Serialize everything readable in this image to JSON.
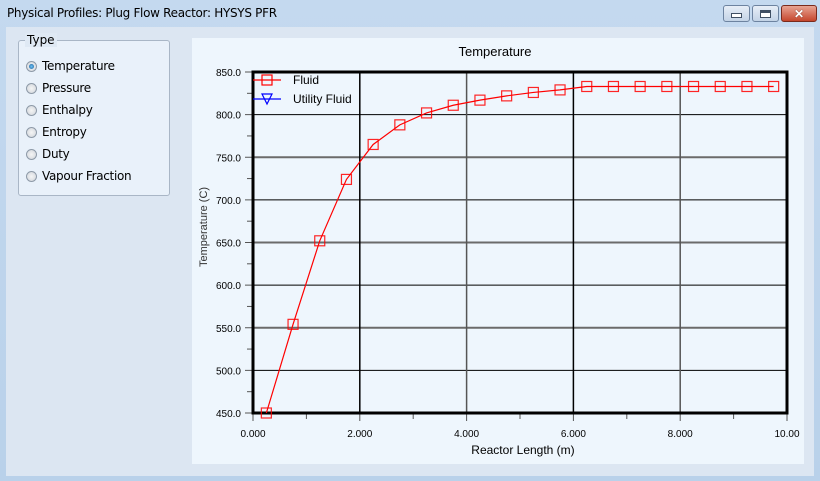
{
  "window": {
    "title": "Physical Profiles: Plug Flow Reactor: HYSYS PFR",
    "controls": {
      "minimize": "minimize-icon",
      "maximize": "maximize-icon",
      "close": "close-icon"
    }
  },
  "type_group": {
    "label": "Type",
    "options": [
      {
        "label": "Temperature",
        "checked": true
      },
      {
        "label": "Pressure",
        "checked": false
      },
      {
        "label": "Enthalpy",
        "checked": false
      },
      {
        "label": "Entropy",
        "checked": false
      },
      {
        "label": "Duty",
        "checked": false
      },
      {
        "label": "Vapour Fraction",
        "checked": false
      }
    ]
  },
  "colors": {
    "fluid": "#ff0000",
    "utility_fluid": "#0000ff",
    "chart_bg": "#eef6fd"
  },
  "chart_data": {
    "type": "line",
    "title": "Temperature",
    "xlabel": "Reactor Length (m)",
    "ylabel": "Temperature (C)",
    "xlim": [
      0,
      10
    ],
    "ylim": [
      450,
      850
    ],
    "x_ticks": [
      "0.000",
      "2.000",
      "4.000",
      "6.000",
      "8.000",
      "10.00"
    ],
    "y_ticks": [
      "450.0",
      "500.0",
      "550.0",
      "600.0",
      "650.0",
      "700.0",
      "750.0",
      "800.0",
      "850.0"
    ],
    "grid": true,
    "legend_position": "top-left inside",
    "x": [
      0.25,
      0.75,
      1.25,
      1.75,
      2.25,
      2.75,
      3.25,
      3.75,
      4.25,
      4.75,
      5.25,
      5.75,
      6.25,
      6.75,
      7.25,
      7.75,
      8.25,
      8.75,
      9.25,
      9.75
    ],
    "series": [
      {
        "name": "Fluid",
        "marker": "square",
        "values": [
          450,
          554,
          652,
          724,
          765,
          788,
          802,
          811,
          817,
          822,
          826,
          829,
          833,
          833,
          833,
          833,
          833,
          833,
          833,
          833
        ]
      },
      {
        "name": "Utility Fluid",
        "marker": "triangle-down",
        "values": []
      }
    ]
  }
}
